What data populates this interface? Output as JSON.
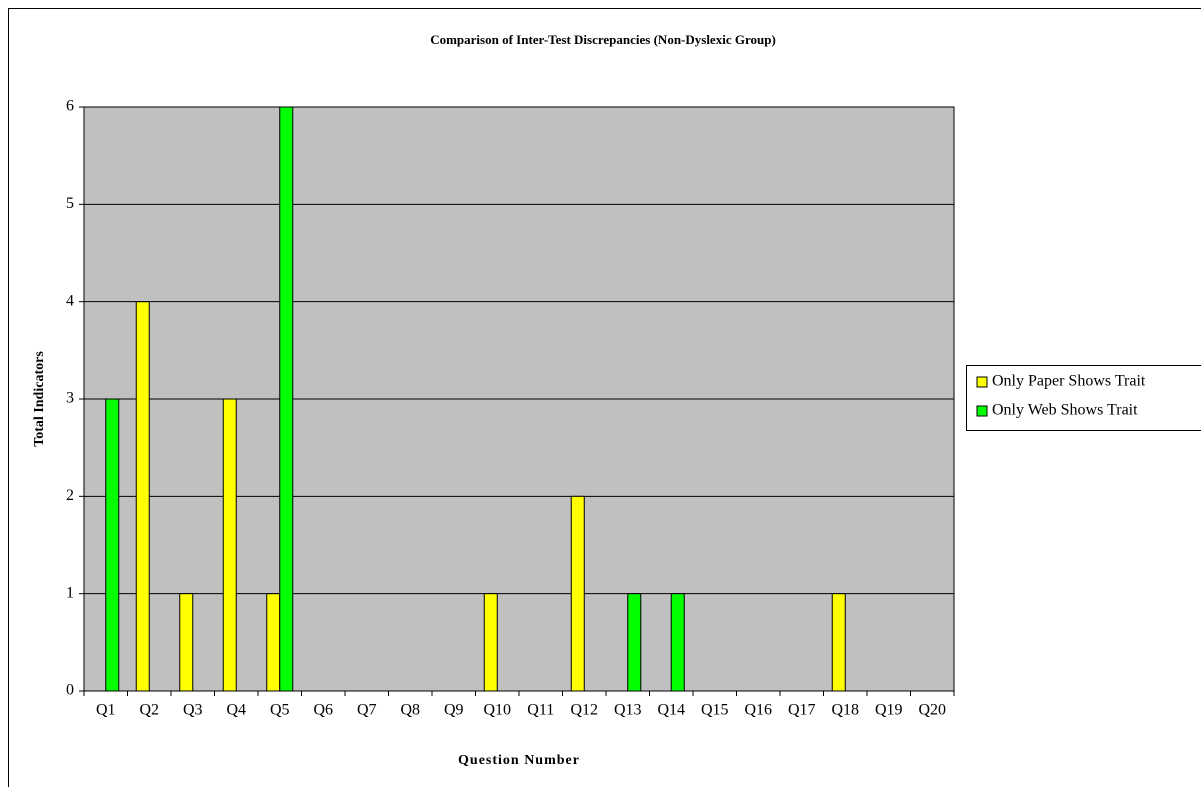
{
  "chart_data": {
    "type": "bar",
    "title": "Comparison of Inter-Test Discrepancies (Non-Dyslexic Group)",
    "xlabel": "Question Number",
    "ylabel": "Total Indicators",
    "categories": [
      "Q1",
      "Q2",
      "Q3",
      "Q4",
      "Q5",
      "Q6",
      "Q7",
      "Q8",
      "Q9",
      "Q10",
      "Q11",
      "Q12",
      "Q13",
      "Q14",
      "Q15",
      "Q16",
      "Q17",
      "Q18",
      "Q19",
      "Q20"
    ],
    "series": [
      {
        "name": "Only Paper Shows Trait",
        "color": "#ffff00",
        "values": [
          0,
          4,
          1,
          3,
          1,
          0,
          0,
          0,
          0,
          1,
          0,
          2,
          0,
          0,
          0,
          0,
          0,
          1,
          0,
          0
        ]
      },
      {
        "name": "Only Web Shows Trait",
        "color": "#00ff00",
        "values": [
          3,
          0,
          0,
          0,
          6,
          0,
          0,
          0,
          0,
          0,
          0,
          0,
          1,
          1,
          0,
          0,
          0,
          0,
          0,
          0
        ]
      }
    ],
    "ylim": [
      0,
      6
    ],
    "yticks": [
      0,
      1,
      2,
      3,
      4,
      5,
      6
    ],
    "grid": true,
    "plot_background": "#c0c0c0",
    "legend": "right"
  }
}
